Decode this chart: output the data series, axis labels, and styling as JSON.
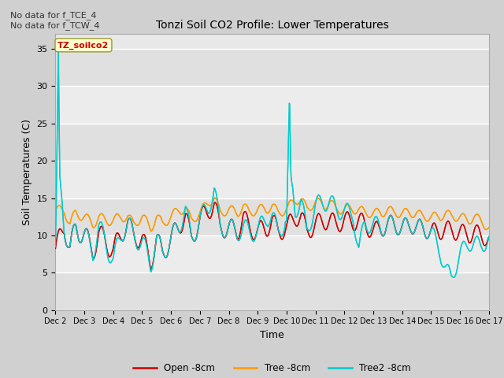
{
  "title": "Tonzi Soil CO2 Profile: Lower Temperatures",
  "xlabel": "Time",
  "ylabel": "Soil Temperatures (C)",
  "top_left_text": "No data for f_TCE_4\nNo data for f_TCW_4",
  "annotation_text": "TZ_soilco2",
  "ylim": [
    0,
    37
  ],
  "yticks": [
    0,
    5,
    10,
    15,
    20,
    25,
    30,
    35
  ],
  "x_labels": [
    "Dec 2",
    "Dec 3",
    "Dec 4",
    "Dec 5",
    "Dec 6",
    "Dec 7",
    "Dec 8",
    "Dec 9",
    "Dec 10",
    "Dec 11",
    "Dec 12",
    "Dec 13",
    "Dec 14",
    "Dec 15",
    "Dec 16",
    "Dec 17"
  ],
  "legend_labels": [
    "Open -8cm",
    "Tree -8cm",
    "Tree2 -8cm"
  ],
  "legend_colors": [
    "#cc0000",
    "#ff9900",
    "#00cccc"
  ],
  "open_8cm_keypoints": {
    "x": [
      0,
      0.3,
      0.5,
      0.7,
      1.0,
      1.3,
      1.5,
      1.7,
      2.0,
      2.3,
      2.5,
      2.7,
      3.0,
      3.3,
      3.5,
      3.7,
      4.0,
      4.3,
      4.5,
      4.7,
      5.0,
      5.3,
      5.5,
      5.7,
      6.0,
      6.3,
      6.5,
      6.7,
      7.0,
      7.3,
      7.5,
      7.7,
      8.0,
      8.3,
      8.5,
      8.7,
      9.0,
      9.3,
      9.5,
      9.7,
      10.0,
      10.3,
      10.5,
      10.7,
      11.0,
      11.3,
      11.5,
      11.7,
      12.0,
      12.3,
      12.5,
      12.7,
      13.0,
      13.3,
      13.5,
      13.7,
      14.0,
      14.3,
      14.5,
      14.7,
      15.0
    ],
    "y": [
      7.8,
      11.5,
      8.0,
      11.0,
      10.0,
      8.0,
      10.0,
      9.5,
      7.8,
      10.5,
      11.5,
      10.0,
      9.5,
      6.5,
      9.5,
      7.5,
      9.5,
      11.5,
      12.5,
      9.5,
      12.0,
      13.5,
      14.0,
      11.0,
      11.0,
      10.5,
      12.5,
      11.0,
      10.5,
      11.0,
      12.0,
      10.5,
      11.0,
      12.5,
      12.5,
      10.5,
      11.5,
      12.0,
      12.0,
      11.5,
      12.0,
      11.8,
      12.0,
      11.5,
      10.5,
      11.0,
      11.5,
      11.5,
      11.0,
      11.5,
      11.0,
      11.0,
      10.5,
      10.5,
      11.0,
      10.5,
      10.5,
      10.0,
      10.5,
      10.0,
      9.5
    ]
  },
  "tree_8cm_keypoints": {
    "x": [
      0,
      0.3,
      0.5,
      0.7,
      1.0,
      1.3,
      1.5,
      1.7,
      2.0,
      2.3,
      2.5,
      2.7,
      3.0,
      3.3,
      3.5,
      3.7,
      4.0,
      4.3,
      4.5,
      4.7,
      5.0,
      5.3,
      5.5,
      5.7,
      6.0,
      6.3,
      6.5,
      6.7,
      7.0,
      7.3,
      7.5,
      7.7,
      8.0,
      8.3,
      8.5,
      8.7,
      9.0,
      9.3,
      9.5,
      9.7,
      10.0,
      10.3,
      10.5,
      10.7,
      11.0,
      11.3,
      11.5,
      11.7,
      12.0,
      12.3,
      12.5,
      12.7,
      13.0,
      13.3,
      13.5,
      13.7,
      14.0,
      14.3,
      14.5,
      14.7,
      15.0
    ],
    "y": [
      13.2,
      13.5,
      11.5,
      13.0,
      12.5,
      11.5,
      12.5,
      12.0,
      12.0,
      12.5,
      12.5,
      11.5,
      12.5,
      11.0,
      12.5,
      11.5,
      12.5,
      13.5,
      13.5,
      12.0,
      13.0,
      14.5,
      15.0,
      13.0,
      13.5,
      13.0,
      14.0,
      13.0,
      13.5,
      13.5,
      14.0,
      13.0,
      13.5,
      14.8,
      14.8,
      13.5,
      14.5,
      14.0,
      14.5,
      13.5,
      13.5,
      13.5,
      13.5,
      13.0,
      13.0,
      13.0,
      13.5,
      13.0,
      13.0,
      13.0,
      13.0,
      12.5,
      12.5,
      12.5,
      13.0,
      12.5,
      12.5,
      12.0,
      12.5,
      12.0,
      11.0
    ]
  },
  "tree2_8cm_keypoints": {
    "x": [
      0,
      0.05,
      0.1,
      0.15,
      0.3,
      0.5,
      0.7,
      1.0,
      1.3,
      1.5,
      1.7,
      2.0,
      2.3,
      2.5,
      2.7,
      3.0,
      3.3,
      3.5,
      3.7,
      4.0,
      4.3,
      4.5,
      4.7,
      5.0,
      5.3,
      5.5,
      5.7,
      6.0,
      6.3,
      6.5,
      6.7,
      7.0,
      7.3,
      7.5,
      7.7,
      7.9,
      8.0,
      8.05,
      8.1,
      8.15,
      8.3,
      8.5,
      8.7,
      9.0,
      9.3,
      9.5,
      9.7,
      10.0,
      10.3,
      10.5,
      10.7,
      11.0,
      11.3,
      11.5,
      11.7,
      12.0,
      12.3,
      12.5,
      12.7,
      13.0,
      13.3,
      13.5,
      13.7,
      14.0,
      14.3,
      14.5,
      14.7,
      15.0
    ],
    "y": [
      8.0,
      20.0,
      35.0,
      18.0,
      11.5,
      8.0,
      11.0,
      10.0,
      7.8,
      11.0,
      9.5,
      6.5,
      10.5,
      11.5,
      10.0,
      9.0,
      6.2,
      9.5,
      7.5,
      9.5,
      11.5,
      13.5,
      9.5,
      12.0,
      14.0,
      16.0,
      11.0,
      11.0,
      10.5,
      11.0,
      10.5,
      10.5,
      12.5,
      12.5,
      10.5,
      11.5,
      12.0,
      20.0,
      28.5,
      18.0,
      13.5,
      14.5,
      10.5,
      14.0,
      14.5,
      14.5,
      13.5,
      13.2,
      12.8,
      8.0,
      11.5,
      11.5,
      11.0,
      11.5,
      11.5,
      11.0,
      11.5,
      11.0,
      11.0,
      10.5,
      8.0,
      5.5,
      4.2,
      7.5,
      9.0,
      9.0,
      8.5,
      9.5
    ]
  }
}
